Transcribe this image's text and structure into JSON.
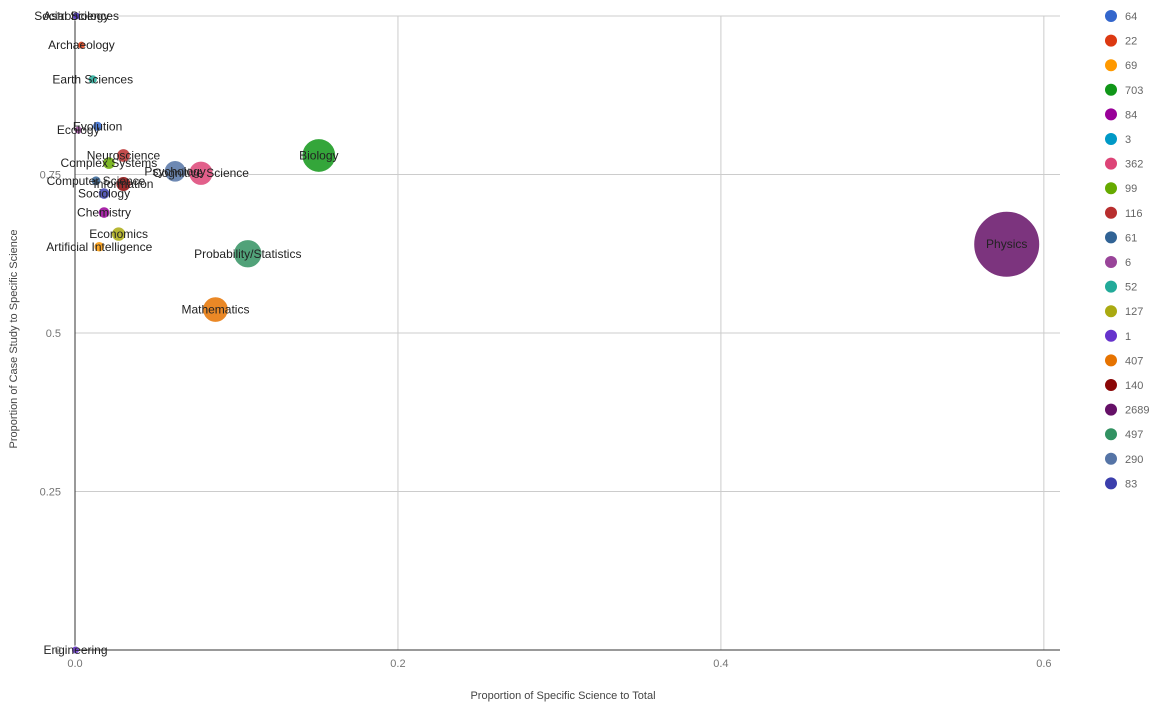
{
  "chart_data": {
    "type": "scatter",
    "title": "",
    "xlabel": "Proportion of Specific Science to Total",
    "ylabel": "Proportion of Case Study to Specific Science",
    "xlim": [
      0,
      0.61
    ],
    "ylim": [
      0,
      1
    ],
    "x_ticks": [
      0.0,
      0.2,
      0.4,
      0.6
    ],
    "x_tick_labels": [
      "0.0",
      "0.2",
      "0.4",
      "0.6"
    ],
    "y_ticks": [
      0,
      0.25,
      0.5,
      0.75,
      1
    ],
    "y_tick_labels": [
      "0",
      "0.25",
      "0.5",
      "0.75",
      "1"
    ],
    "grid": true,
    "legend_position": "right",
    "legend": [
      {
        "label": "64",
        "color": "#3366cc"
      },
      {
        "label": "22",
        "color": "#dc3912"
      },
      {
        "label": "69",
        "color": "#ff9900"
      },
      {
        "label": "703",
        "color": "#109618"
      },
      {
        "label": "84",
        "color": "#990099"
      },
      {
        "label": "3",
        "color": "#0099c6"
      },
      {
        "label": "362",
        "color": "#dd4477"
      },
      {
        "label": "99",
        "color": "#66aa00"
      },
      {
        "label": "116",
        "color": "#b82e2e"
      },
      {
        "label": "61",
        "color": "#316395"
      },
      {
        "label": "6",
        "color": "#994499"
      },
      {
        "label": "52",
        "color": "#22aa99"
      },
      {
        "label": "127",
        "color": "#aaaa11"
      },
      {
        "label": "1",
        "color": "#6633cc"
      },
      {
        "label": "407",
        "color": "#e67300"
      },
      {
        "label": "140",
        "color": "#8b0707"
      },
      {
        "label": "2689",
        "color": "#651067"
      },
      {
        "label": "497",
        "color": "#329262"
      },
      {
        "label": "290",
        "color": "#5574a6"
      },
      {
        "label": "83",
        "color": "#3b3eac"
      }
    ],
    "points": [
      {
        "label": "Engineering",
        "x": 0.0003,
        "y": 0.0,
        "size": 1,
        "color": "#6633cc"
      },
      {
        "label": "Physics",
        "x": 0.577,
        "y": 0.64,
        "size": 2689,
        "color": "#651067"
      },
      {
        "label": "Biology",
        "x": 0.151,
        "y": 0.78,
        "size": 703,
        "color": "#109618"
      },
      {
        "label": "Probability/Statistics",
        "x": 0.107,
        "y": 0.625,
        "size": 497,
        "color": "#329262"
      },
      {
        "label": "Mathematics",
        "x": 0.087,
        "y": 0.537,
        "size": 407,
        "color": "#e67300"
      },
      {
        "label": "Cognitive Science",
        "x": 0.078,
        "y": 0.752,
        "size": 362,
        "color": "#dd4477"
      },
      {
        "label": "Psychology",
        "x": 0.062,
        "y": 0.755,
        "size": 290,
        "color": "#5574a6"
      },
      {
        "label": "Information",
        "x": 0.03,
        "y": 0.735,
        "size": 140,
        "color": "#8b0707"
      },
      {
        "label": "Economics",
        "x": 0.027,
        "y": 0.656,
        "size": 127,
        "color": "#aaaa11"
      },
      {
        "label": "Neuroscience",
        "x": 0.03,
        "y": 0.78,
        "size": 116,
        "color": "#b82e2e"
      },
      {
        "label": "Complex Systems",
        "x": 0.021,
        "y": 0.768,
        "size": 99,
        "color": "#66aa00"
      },
      {
        "label": "Chemistry",
        "x": 0.018,
        "y": 0.69,
        "size": 84,
        "color": "#990099"
      },
      {
        "label": "Sociology",
        "x": 0.018,
        "y": 0.72,
        "size": 83,
        "color": "#3b3eac"
      },
      {
        "label": "Artificial Intelligence",
        "x": 0.015,
        "y": 0.636,
        "size": 69,
        "color": "#ff9900"
      },
      {
        "label": "Evolution",
        "x": 0.014,
        "y": 0.826,
        "size": 64,
        "color": "#3366cc"
      },
      {
        "label": "Computer Science",
        "x": 0.013,
        "y": 0.74,
        "size": 61,
        "color": "#316395"
      },
      {
        "label": "Earth Sciences",
        "x": 0.011,
        "y": 0.9,
        "size": 52,
        "color": "#22aa99"
      },
      {
        "label": "Archaeology",
        "x": 0.004,
        "y": 0.954,
        "size": 22,
        "color": "#dc3912"
      },
      {
        "label": "Ecology",
        "x": 0.002,
        "y": 0.82,
        "size": 6,
        "color": "#994499"
      },
      {
        "label": "Social Sciences",
        "x": 0.001,
        "y": 1.0,
        "size": 3,
        "color": "#0099c6"
      },
      {
        "label": "Astrobiology",
        "x": 0.0008,
        "y": 1.0,
        "size": 1,
        "color": "#6633cc"
      }
    ]
  }
}
